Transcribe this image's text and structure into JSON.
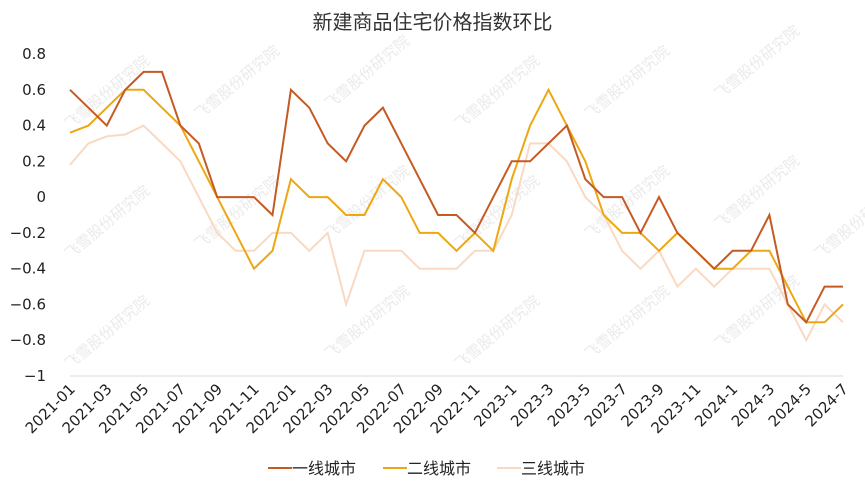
{
  "chart_data": {
    "type": "line",
    "title": "新建商品住宅价格指数环比",
    "xlabel": "",
    "ylabel": "",
    "ylim": [
      -1,
      0.8
    ],
    "yticks": [
      0.8,
      0.6,
      0.4,
      0.2,
      0,
      -0.2,
      -0.4,
      -0.6,
      -0.8,
      -1
    ],
    "ytick_labels": [
      "0.8",
      "0.6",
      "0.4",
      "0.2",
      "0",
      "−0.2",
      "−0.4",
      "−0.6",
      "−0.8",
      "−1"
    ],
    "grid": false,
    "legend_position": "bottom",
    "x": [
      "2021-01",
      "2021-02",
      "2021-03",
      "2021-04",
      "2021-05",
      "2021-06",
      "2021-07",
      "2021-08",
      "2021-09",
      "2021-10",
      "2021-11",
      "2021-12",
      "2022-01",
      "2022-02",
      "2022-03",
      "2022-04",
      "2022-05",
      "2022-06",
      "2022-07",
      "2022-08",
      "2022-09",
      "2022-10",
      "2022-11",
      "2022-12",
      "2023-1",
      "2023-2",
      "2023-3",
      "2023-4",
      "2023-5",
      "2023-6",
      "2023-7",
      "2023-8",
      "2023-9",
      "2023-10",
      "2023-11",
      "2023-12",
      "2024-1",
      "2024-2",
      "2024-3",
      "2024-4",
      "2024-5",
      "2024-6",
      "2024-7"
    ],
    "x_tick_labels": [
      "2021-01",
      "2021-03",
      "2021-05",
      "2021-07",
      "2021-09",
      "2021-11",
      "2022-01",
      "2022-03",
      "2022-05",
      "2022-07",
      "2022-09",
      "2022-11",
      "2023-1",
      "2023-3",
      "2023-5",
      "2023-7",
      "2023-9",
      "2023-11",
      "2024-1",
      "2024-3",
      "2024-5",
      "2024-7"
    ],
    "series": [
      {
        "name": "一线城市",
        "color": "#C55A23",
        "values": [
          0.6,
          0.5,
          0.4,
          0.6,
          0.7,
          0.7,
          0.4,
          0.3,
          0.0,
          0.0,
          0.0,
          -0.1,
          0.6,
          0.5,
          0.3,
          0.2,
          0.4,
          0.5,
          0.3,
          0.1,
          -0.1,
          -0.1,
          -0.2,
          0.0,
          0.2,
          0.2,
          0.3,
          0.4,
          0.1,
          0.0,
          0.0,
          -0.2,
          0.0,
          -0.2,
          -0.3,
          -0.4,
          -0.3,
          -0.3,
          -0.1,
          -0.6,
          -0.7,
          -0.5,
          -0.5
        ]
      },
      {
        "name": "二线城市",
        "color": "#EDA712",
        "values": [
          0.36,
          0.4,
          0.5,
          0.6,
          0.6,
          0.5,
          0.4,
          0.2,
          0.0,
          -0.2,
          -0.4,
          -0.3,
          0.1,
          0.0,
          0.0,
          -0.1,
          -0.1,
          0.1,
          0.0,
          -0.2,
          -0.2,
          -0.3,
          -0.2,
          -0.3,
          0.1,
          0.4,
          0.6,
          0.4,
          0.2,
          -0.1,
          -0.2,
          -0.2,
          -0.3,
          -0.2,
          -0.3,
          -0.4,
          -0.4,
          -0.3,
          -0.3,
          -0.5,
          -0.7,
          -0.7,
          -0.6
        ]
      },
      {
        "name": "三线城市",
        "color": "#FAD9C2",
        "values": [
          0.18,
          0.3,
          0.34,
          0.35,
          0.4,
          0.3,
          0.2,
          0.0,
          -0.2,
          -0.3,
          -0.3,
          -0.2,
          -0.2,
          -0.3,
          -0.2,
          -0.6,
          -0.3,
          -0.3,
          -0.3,
          -0.4,
          -0.4,
          -0.4,
          -0.3,
          -0.3,
          -0.1,
          0.3,
          0.3,
          0.2,
          0.0,
          -0.1,
          -0.3,
          -0.4,
          -0.3,
          -0.5,
          -0.4,
          -0.5,
          -0.4,
          -0.4,
          -0.4,
          -0.6,
          -0.8,
          -0.6,
          -0.7
        ]
      }
    ]
  },
  "watermark": "飞雪股份研究院"
}
